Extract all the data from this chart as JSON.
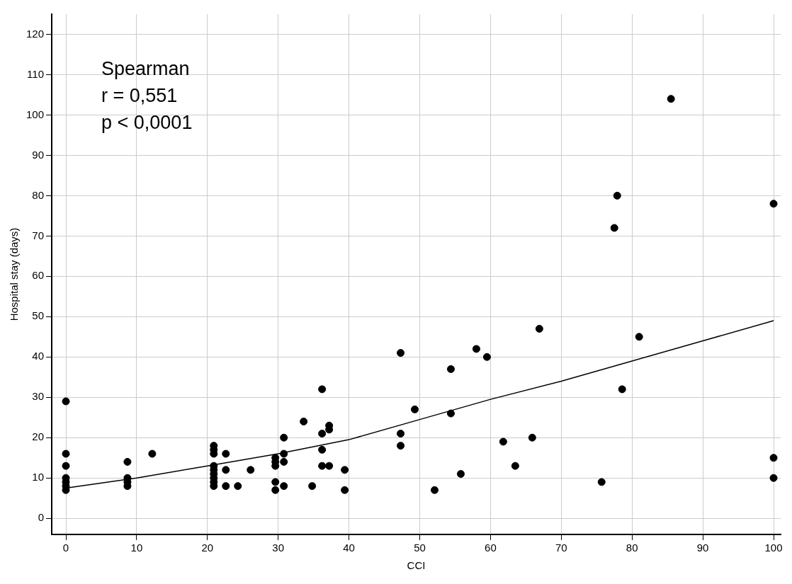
{
  "chart_data": {
    "type": "scatter",
    "xlabel": "CCI",
    "ylabel": "Hospital stay (days)",
    "annotations": [
      "Spearman",
      "r = 0,551",
      "p < 0,0001"
    ],
    "xlim": [
      -2,
      101
    ],
    "xticks": [
      0,
      10,
      20,
      30,
      40,
      50,
      60,
      70,
      80,
      90,
      100
    ],
    "ylim": [
      -4,
      125
    ],
    "yticks": [
      0,
      10,
      20,
      30,
      40,
      50,
      60,
      70,
      80,
      90,
      100,
      110,
      120
    ],
    "grid": true,
    "marker": "circle",
    "series": [
      {
        "color": "#000000",
        "x": [
          0,
          0,
          0,
          0,
          0,
          0,
          0,
          8.7,
          8.7,
          8.7,
          8.7,
          12.2,
          20.9,
          20.9,
          20.9,
          20.9,
          20.9,
          20.9,
          20.9,
          20.9,
          20.9,
          22.6,
          22.6,
          22.6,
          24.3,
          26.1,
          29.6,
          29.6,
          29.6,
          29.6,
          29.6,
          30.8,
          30.8,
          30.8,
          30.8,
          33.6,
          34.8,
          36.2,
          36.2,
          36.2,
          36.2,
          37.2,
          37.2,
          37.2,
          39.4,
          39.4,
          47.3,
          47.3,
          47.3,
          49.3,
          52.1,
          54.4,
          54.4,
          55.8,
          58,
          59.5,
          61.8,
          63.5,
          65.9,
          66.9,
          75.7,
          77.5,
          77.9,
          78.6,
          81,
          85.5,
          100,
          100,
          100
        ],
        "values": [
          29,
          16,
          13,
          10,
          9,
          8,
          7,
          14,
          10,
          9,
          8,
          16,
          18,
          17,
          16,
          13,
          12,
          11,
          10,
          9,
          8,
          16,
          12,
          8,
          8,
          12,
          15,
          14,
          13,
          9,
          7,
          20,
          16,
          14,
          8,
          24,
          8,
          32,
          21,
          17,
          13,
          23,
          22,
          13,
          12,
          7,
          41,
          21,
          18,
          27,
          7,
          37,
          26,
          11,
          42,
          40,
          19,
          13,
          20,
          47,
          9,
          72,
          80,
          32,
          45,
          104,
          78,
          15,
          10
        ]
      },
      {
        "type": "line",
        "color": "#000000",
        "line_style": "solid",
        "marker": "none",
        "x": [
          0,
          10,
          20,
          30,
          40,
          50,
          60,
          70,
          80,
          90,
          100
        ],
        "values": [
          7.5,
          10,
          13,
          16,
          19.5,
          24.5,
          29.5,
          34,
          39,
          44,
          49
        ]
      }
    ]
  }
}
